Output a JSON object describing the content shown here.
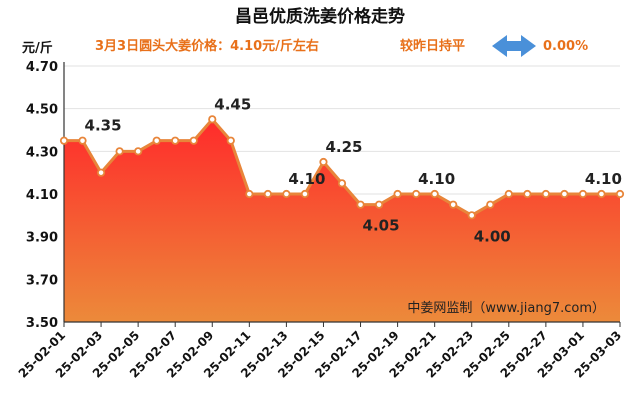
{
  "header": {
    "title": "昌邑优质洗姜价格走势",
    "headline": "3月3日圆头大姜价格：4.10元/斤左右",
    "change_text": "较昨日持平",
    "change_pct": "0.00%",
    "unit": "元/斤",
    "watermark": "中姜网监制（www.jiang7.com）",
    "arrow_icon": "double-arrow-icon",
    "colors": {
      "accent": "#e8701a",
      "line": "#e8853a",
      "area_top": "#ff2b2b",
      "area_bottom": "#ec8a3a",
      "arrow": "#4a90d9"
    }
  },
  "chart_data": {
    "type": "area",
    "x": [
      "25-02-01",
      "25-02-02",
      "25-02-03",
      "25-02-04",
      "25-02-05",
      "25-02-06",
      "25-02-07",
      "25-02-08",
      "25-02-09",
      "25-02-10",
      "25-02-11",
      "25-02-12",
      "25-02-13",
      "25-02-14",
      "25-02-15",
      "25-02-16",
      "25-02-17",
      "25-02-18",
      "25-02-19",
      "25-02-20",
      "25-02-21",
      "25-02-22",
      "25-02-23",
      "25-02-24",
      "25-02-25",
      "25-02-26",
      "25-02-27",
      "25-02-28",
      "25-03-01",
      "25-03-02",
      "25-03-03"
    ],
    "values": [
      4.35,
      4.35,
      4.2,
      4.3,
      4.3,
      4.35,
      4.35,
      4.35,
      4.45,
      4.35,
      4.1,
      4.1,
      4.1,
      4.1,
      4.25,
      4.15,
      4.05,
      4.05,
      4.1,
      4.1,
      4.1,
      4.05,
      4.0,
      4.05,
      4.1,
      4.1,
      4.1,
      4.1,
      4.1,
      4.1,
      4.1
    ],
    "x_tick_labels": [
      "25-02-01",
      "25-02-03",
      "25-02-05",
      "25-02-07",
      "25-02-09",
      "25-02-11",
      "25-02-13",
      "25-02-15",
      "25-02-17",
      "25-02-19",
      "25-02-21",
      "25-02-23",
      "25-02-25",
      "25-02-27",
      "25-03-01",
      "25-03-03"
    ],
    "y_tick_labels": [
      "3.50",
      "3.70",
      "3.90",
      "4.10",
      "4.30",
      "4.50",
      "4.70"
    ],
    "ylim": [
      3.5,
      4.7
    ],
    "ylabel": "元/斤",
    "grid": true,
    "annotations": [
      {
        "index": 1,
        "text": "4.35",
        "position": "above"
      },
      {
        "index": 8,
        "text": "4.45",
        "position": "above"
      },
      {
        "index": 12,
        "text": "4.10",
        "position": "above"
      },
      {
        "index": 14,
        "text": "4.25",
        "position": "above"
      },
      {
        "index": 16,
        "text": "4.05",
        "position": "below"
      },
      {
        "index": 19,
        "text": "4.10",
        "position": "above"
      },
      {
        "index": 22,
        "text": "4.00",
        "position": "below"
      },
      {
        "index": 28,
        "text": "4.10",
        "position": "above"
      }
    ]
  }
}
